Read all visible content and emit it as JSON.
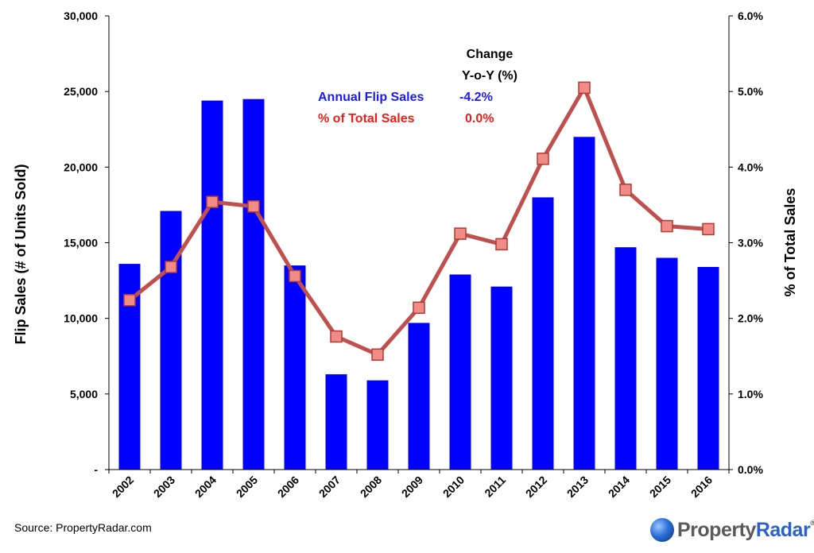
{
  "chart_data": {
    "type": "bar+line",
    "categories": [
      "2002",
      "2003",
      "2004",
      "2005",
      "2006",
      "2007",
      "2008",
      "2009",
      "2010",
      "2011",
      "2012",
      "2013",
      "2014",
      "2015",
      "2016"
    ],
    "series": [
      {
        "name": "Annual Flip Sales",
        "type": "bar",
        "axis": "left",
        "color": "#0000ff",
        "values": [
          13600,
          17100,
          24400,
          24500,
          13500,
          6300,
          5900,
          9700,
          12900,
          12100,
          18000,
          22000,
          14700,
          14000,
          13400
        ]
      },
      {
        "name": "% of Total Sales",
        "type": "line",
        "axis": "right",
        "color": "#c0504d",
        "values": [
          2.24,
          2.68,
          3.54,
          3.48,
          2.56,
          1.76,
          1.52,
          2.14,
          3.12,
          2.98,
          4.11,
          5.05,
          3.7,
          3.22,
          3.18
        ]
      }
    ],
    "ylabel": "Flip Sales (# of Units Sold)",
    "y2label": "% of Total Sales",
    "ylim": [
      0,
      30000
    ],
    "y2lim": [
      0,
      6
    ],
    "yticks": [
      "-",
      "5,000",
      "10,000",
      "15,000",
      "20,000",
      "25,000",
      "30,000"
    ],
    "y2ticks": [
      "0.0%",
      "1.0%",
      "2.0%",
      "3.0%",
      "4.0%",
      "5.0%",
      "6.0%"
    ],
    "grid": false,
    "legend": {
      "placement": "top-center",
      "header": [
        "Change",
        "Y-o-Y (%)"
      ],
      "rows": [
        {
          "label": "Annual Flip Sales",
          "change": "-4.2%",
          "color": "#0000ff"
        },
        {
          "label": "% of Total Sales",
          "change": "0.0%",
          "color": "#e8201a"
        }
      ]
    }
  },
  "footer": {
    "source": "Source: PropertyRadar.com",
    "logo_part1": "Property",
    "logo_part2": "Radar",
    "logo_tm": "®"
  }
}
